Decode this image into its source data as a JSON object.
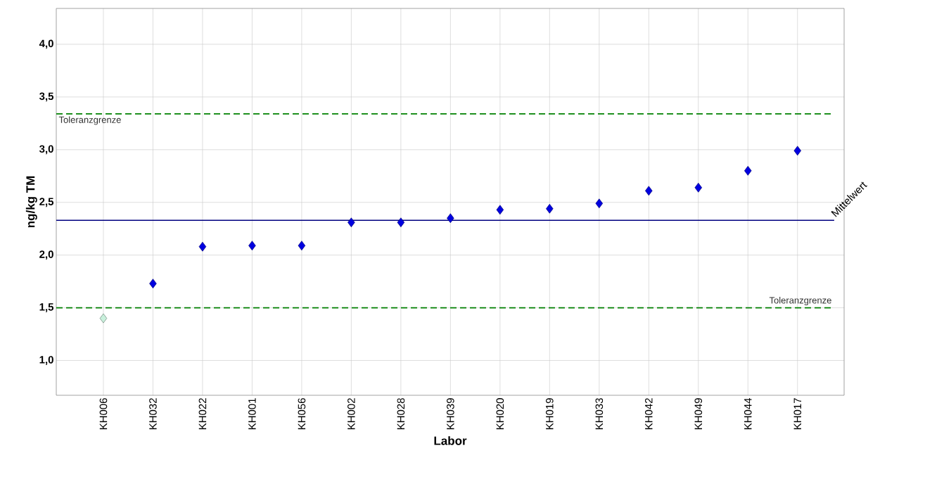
{
  "chart_data": {
    "type": "scatter",
    "xlabel": "Labor",
    "ylabel": "ng/kg TM",
    "categories": [
      "KH006",
      "KH032",
      "KH022",
      "KH001",
      "KH056",
      "KH002",
      "KH028",
      "KH039",
      "KH020",
      "KH019",
      "KH033",
      "KH042",
      "KH049",
      "KH044",
      "KH017"
    ],
    "values": [
      1.4,
      1.73,
      2.08,
      2.09,
      2.09,
      2.31,
      2.31,
      2.35,
      2.43,
      2.44,
      2.49,
      2.61,
      2.64,
      2.8,
      2.99
    ],
    "colors": [
      "#c8f0dc",
      "#0000e0",
      "#0000e0",
      "#0000e0",
      "#0000e0",
      "#0000e0",
      "#0000e0",
      "#0000e0",
      "#0000e0",
      "#0000e0",
      "#0000e0",
      "#0000e0",
      "#0000e0",
      "#0000e0",
      "#0000e0"
    ],
    "marker": "diamond",
    "grid": true,
    "ylim": [
      0.67,
      4.34
    ],
    "yticks": [
      {
        "value": 1.0,
        "label": "1,0"
      },
      {
        "value": 1.5,
        "label": "1,5"
      },
      {
        "value": 2.0,
        "label": "2,0"
      },
      {
        "value": 2.5,
        "label": "2,5"
      },
      {
        "value": 3.0,
        "label": "3,0"
      },
      {
        "value": 3.5,
        "label": "3,5"
      },
      {
        "value": 4.0,
        "label": "4,0"
      }
    ],
    "ref_lines": [
      {
        "axis": "y",
        "value": 3.34,
        "label": "Toleranzgrenze",
        "color": "#008000",
        "line_style": "dashed"
      },
      {
        "axis": "y",
        "value": 1.5,
        "label": "Toleranzgrenze",
        "color": "#008000",
        "line_style": "dashed"
      },
      {
        "axis": "y",
        "value": 2.33,
        "label": "Mittelwert",
        "color": "#000080",
        "line_style": "solid"
      }
    ]
  }
}
